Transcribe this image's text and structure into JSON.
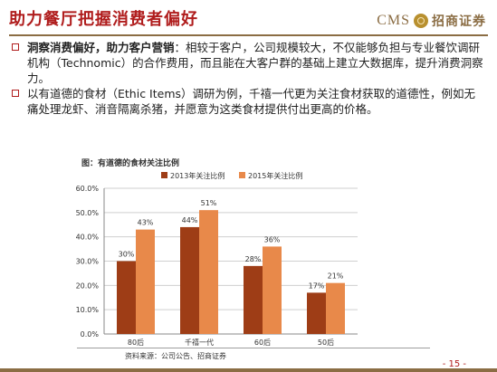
{
  "slide": {
    "title": "助力餐厅把握消费者偏好",
    "logo_text": "CMS",
    "logo_name": "招商证券",
    "bullets": [
      {
        "bold": "洞察消费偏好，助力客户营销",
        "text": "：相较于客户，公司规模较大，不仅能够负担与专业餐饮调研机构（Technomic）的合作费用，而且能在大客户群的基础上建立大数据库，提升消费洞察力。"
      },
      {
        "bold": "",
        "text": "以有道德的食材（Ethic Items）调研为例，千禧一代更为关注食材获取的道德性，例如无痛处理龙虾、消音隔离杀猪，并愿意为这类食材提供付出更高的价格。"
      }
    ],
    "chart_caption": "图：有道德的食材关注比例",
    "source": "资料来源：公司公告、招商证券",
    "page_number": "- 15 -"
  },
  "colors": {
    "brand_red": "#b01d1d",
    "brand_gold": "#8b6d44",
    "series_2013": "#9e3d16",
    "series_2015": "#e8894a"
  },
  "chart_data": {
    "type": "bar",
    "categories": [
      "80后",
      "千禧一代",
      "60后",
      "50后"
    ],
    "series": [
      {
        "name": "2013年关注比例",
        "values": [
          30,
          44,
          28,
          17
        ],
        "labels": [
          "30%",
          "44%",
          "28%",
          "17%"
        ]
      },
      {
        "name": "2015年关注比例",
        "values": [
          43,
          51,
          36,
          21
        ],
        "labels": [
          "43%",
          "51%",
          "36%",
          "21%"
        ]
      }
    ],
    "ylim": [
      0,
      60
    ],
    "yticks": [
      "0.0%",
      "10.0%",
      "20.0%",
      "30.0%",
      "40.0%",
      "50.0%",
      "60.0%"
    ],
    "grid": true,
    "legend": "top"
  }
}
